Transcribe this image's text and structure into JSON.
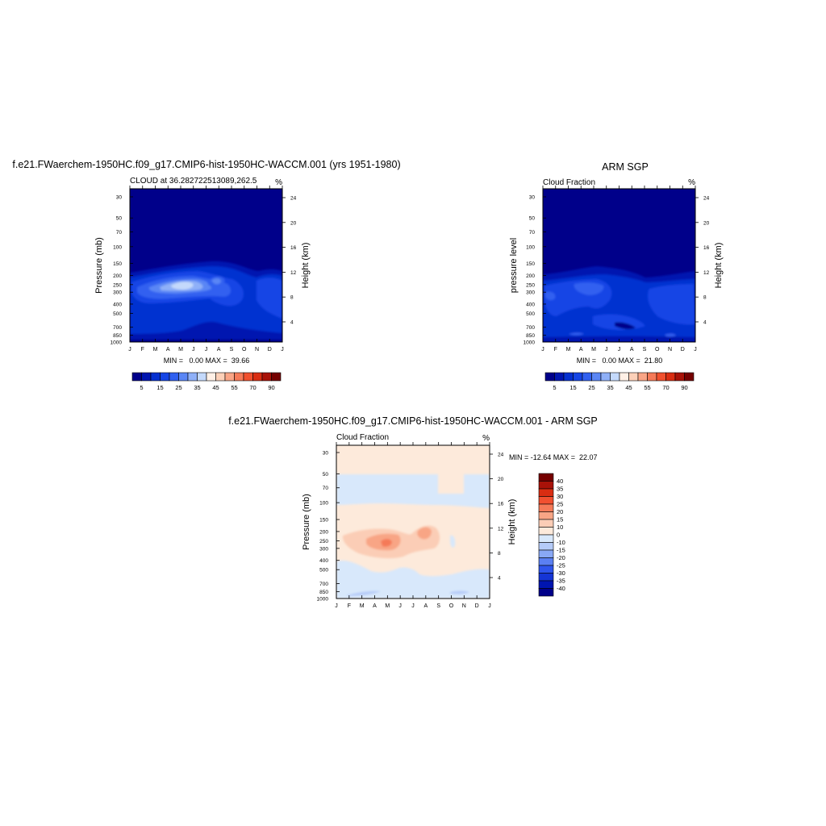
{
  "colors": {
    "frame": "#000000",
    "cloud_scale": [
      "#00008a",
      "#0015b0",
      "#0530d0",
      "#1545e5",
      "#3060f0",
      "#5a86f5",
      "#8fb0f8",
      "#c4d9fb",
      "#fff0e6",
      "#fcd0b8",
      "#f9a586",
      "#f57a58",
      "#f0502e",
      "#d92d12",
      "#a81208",
      "#750000"
    ],
    "diff_scale": [
      "#00008a",
      "#0015b0",
      "#1535d5",
      "#2f55ec",
      "#5b80f2",
      "#89a8f5",
      "#b5cbf8",
      "#d8e8fb",
      "#fdeadb",
      "#fbcdb6",
      "#f8a585",
      "#f57a58",
      "#f15030",
      "#d92d12",
      "#a81208",
      "#750000"
    ]
  },
  "chart_data": [
    {
      "id": "model",
      "type": "contour",
      "title": "f.e21.FWaerchem-1950HC.f09_g17.CMIP6-hist-1950HC-WACCM.001 (yrs 1951-1980)",
      "left_string": "CLOUD at 36.282722513089,262.5",
      "right_string": "%",
      "ylabel": "Pressure (mb)",
      "ylabel_right": "Height (km)",
      "x_ticks": [
        "J",
        "F",
        "M",
        "A",
        "M",
        "J",
        "J",
        "A",
        "S",
        "O",
        "N",
        "D",
        "J"
      ],
      "y_ticks": [
        "30",
        "50",
        "70",
        "100",
        "150",
        "200",
        "250",
        "300",
        "400",
        "500",
        "700",
        "850",
        "1000"
      ],
      "height_ticks": [
        "24",
        "20",
        "16",
        "12",
        "8",
        "4"
      ],
      "stats": "MIN =   0.00 MAX =  39.66",
      "min": 0.0,
      "max": 39.66,
      "colorbar_labels": [
        "5",
        "15",
        "25",
        "35",
        "45",
        "55",
        "70",
        "90"
      ]
    },
    {
      "id": "obs",
      "type": "contour",
      "title": "ARM SGP",
      "left_string": "Cloud Fraction",
      "right_string": "%",
      "ylabel": "pressure level",
      "ylabel_right": "Height (km)",
      "x_ticks": [
        "J",
        "F",
        "M",
        "A",
        "M",
        "J",
        "J",
        "A",
        "S",
        "O",
        "N",
        "D",
        "J"
      ],
      "y_ticks": [
        "30",
        "50",
        "70",
        "100",
        "150",
        "200",
        "250",
        "300",
        "400",
        "500",
        "700",
        "850",
        "1000"
      ],
      "height_ticks": [
        "24",
        "20",
        "16",
        "12",
        "8",
        "4"
      ],
      "stats": "MIN =   0.00 MAX =  21.80",
      "min": 0.0,
      "max": 21.8,
      "colorbar_labels": [
        "5",
        "15",
        "25",
        "35",
        "45",
        "55",
        "70",
        "90"
      ]
    },
    {
      "id": "diff",
      "type": "contour",
      "title": "f.e21.FWaerchem-1950HC.f09_g17.CMIP6-hist-1950HC-WACCM.001 - ARM SGP",
      "left_string": "Cloud Fraction",
      "right_string": "%",
      "ylabel": "Pressure (mb)",
      "ylabel_right": "Height (km)",
      "x_ticks": [
        "J",
        "F",
        "M",
        "A",
        "M",
        "J",
        "J",
        "A",
        "S",
        "O",
        "N",
        "D",
        "J"
      ],
      "y_ticks": [
        "30",
        "50",
        "70",
        "100",
        "150",
        "200",
        "250",
        "300",
        "400",
        "500",
        "700",
        "850",
        "1000"
      ],
      "height_ticks": [
        "24",
        "20",
        "16",
        "12",
        "8",
        "4"
      ],
      "stats": "MIN = -12.64 MAX =  22.07",
      "min": -12.64,
      "max": 22.07,
      "colorbar_labels": [
        "40",
        "35",
        "30",
        "25",
        "20",
        "15",
        "10",
        "0",
        "-10",
        "-15",
        "-20",
        "-25",
        "-30",
        "-35",
        "-40"
      ]
    }
  ]
}
